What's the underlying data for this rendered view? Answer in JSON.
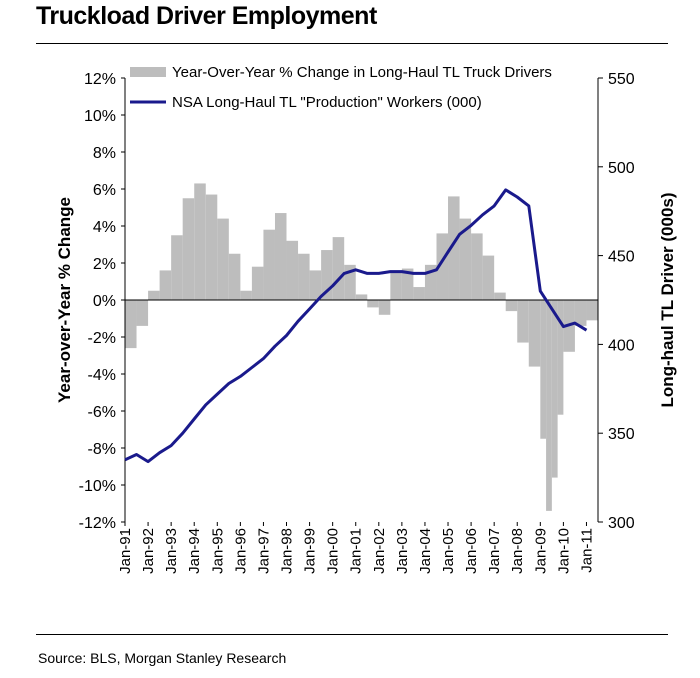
{
  "page": {
    "title": "Truckload Driver Employment",
    "source": "Source: BLS, Morgan Stanley Research"
  },
  "chart_data": {
    "type": "bar",
    "title": "Truckload Driver Employment",
    "ylabel": "Year-over-Year % Change",
    "y2label": "Long-haul TL Driver (000s)",
    "ylim": [
      -12,
      12
    ],
    "y2lim": [
      300,
      550
    ],
    "yticks": [
      "12%",
      "10%",
      "8%",
      "6%",
      "4%",
      "2%",
      "0%",
      "-2%",
      "-4%",
      "-6%",
      "-8%",
      "-10%",
      "-12%"
    ],
    "y2ticks": [
      "550",
      "500",
      "450",
      "400",
      "350",
      "300"
    ],
    "xticks": [
      "Jan-91",
      "Jan-92",
      "Jan-93",
      "Jan-94",
      "Jan-95",
      "Jan-96",
      "Jan-97",
      "Jan-98",
      "Jan-99",
      "Jan-00",
      "Jan-01",
      "Jan-02",
      "Jan-03",
      "Jan-04",
      "Jan-05",
      "Jan-06",
      "Jan-07",
      "Jan-08",
      "Jan-09",
      "Jan-10",
      "Jan-11"
    ],
    "legend_position": "top",
    "series": [
      {
        "name": "Year-Over-Year % Change in Long-Haul TL Truck Drivers",
        "kind": "bar",
        "axis": "left",
        "color": "#bdbdbd",
        "x": [
          1991.0,
          1991.5,
          1992.0,
          1992.5,
          1993.0,
          1993.5,
          1994.0,
          1994.5,
          1995.0,
          1995.5,
          1996.0,
          1996.5,
          1997.0,
          1997.5,
          1998.0,
          1998.5,
          1999.0,
          1999.5,
          2000.0,
          2000.5,
          2001.0,
          2001.5,
          2002.0,
          2002.5,
          2003.0,
          2003.5,
          2004.0,
          2004.5,
          2005.0,
          2005.5,
          2006.0,
          2006.5,
          2007.0,
          2007.5,
          2008.0,
          2008.5,
          2009.0,
          2009.25,
          2009.5,
          2009.75,
          2010.0,
          2010.5,
          2011.0
        ],
        "y": [
          -2.6,
          -1.4,
          0.5,
          1.6,
          3.5,
          5.5,
          6.3,
          5.7,
          4.4,
          2.5,
          0.5,
          1.8,
          3.8,
          4.7,
          3.2,
          2.5,
          1.6,
          2.7,
          3.4,
          1.9,
          0.3,
          -0.4,
          -0.8,
          1.6,
          1.7,
          0.7,
          1.9,
          3.6,
          5.6,
          4.4,
          3.6,
          2.4,
          0.4,
          -0.6,
          -2.3,
          -3.6,
          -7.5,
          -11.4,
          -9.6,
          -6.2,
          -2.8,
          -1.4,
          -1.1
        ]
      },
      {
        "name": "NSA Long-Haul TL \"Production\" Workers (000)",
        "kind": "line",
        "axis": "right",
        "color": "#1a1a8c",
        "x": [
          1991.0,
          1991.5,
          1992.0,
          1992.5,
          1993.0,
          1993.5,
          1994.0,
          1994.5,
          1995.0,
          1995.5,
          1996.0,
          1996.5,
          1997.0,
          1997.5,
          1998.0,
          1998.5,
          1999.0,
          1999.5,
          2000.0,
          2000.5,
          2001.0,
          2001.5,
          2002.0,
          2002.5,
          2003.0,
          2003.5,
          2004.0,
          2004.5,
          2005.0,
          2005.5,
          2006.0,
          2006.5,
          2007.0,
          2007.5,
          2008.0,
          2008.5,
          2009.0,
          2009.5,
          2010.0,
          2010.5,
          2011.0
        ],
        "y": [
          335,
          338,
          334,
          339,
          343,
          350,
          358,
          366,
          372,
          378,
          382,
          387,
          392,
          399,
          405,
          413,
          420,
          427,
          433,
          440,
          442,
          440,
          440,
          441,
          441,
          440,
          440,
          442,
          452,
          462,
          467,
          473,
          478,
          487,
          483,
          478,
          430,
          420,
          410,
          412,
          408
        ]
      }
    ]
  }
}
